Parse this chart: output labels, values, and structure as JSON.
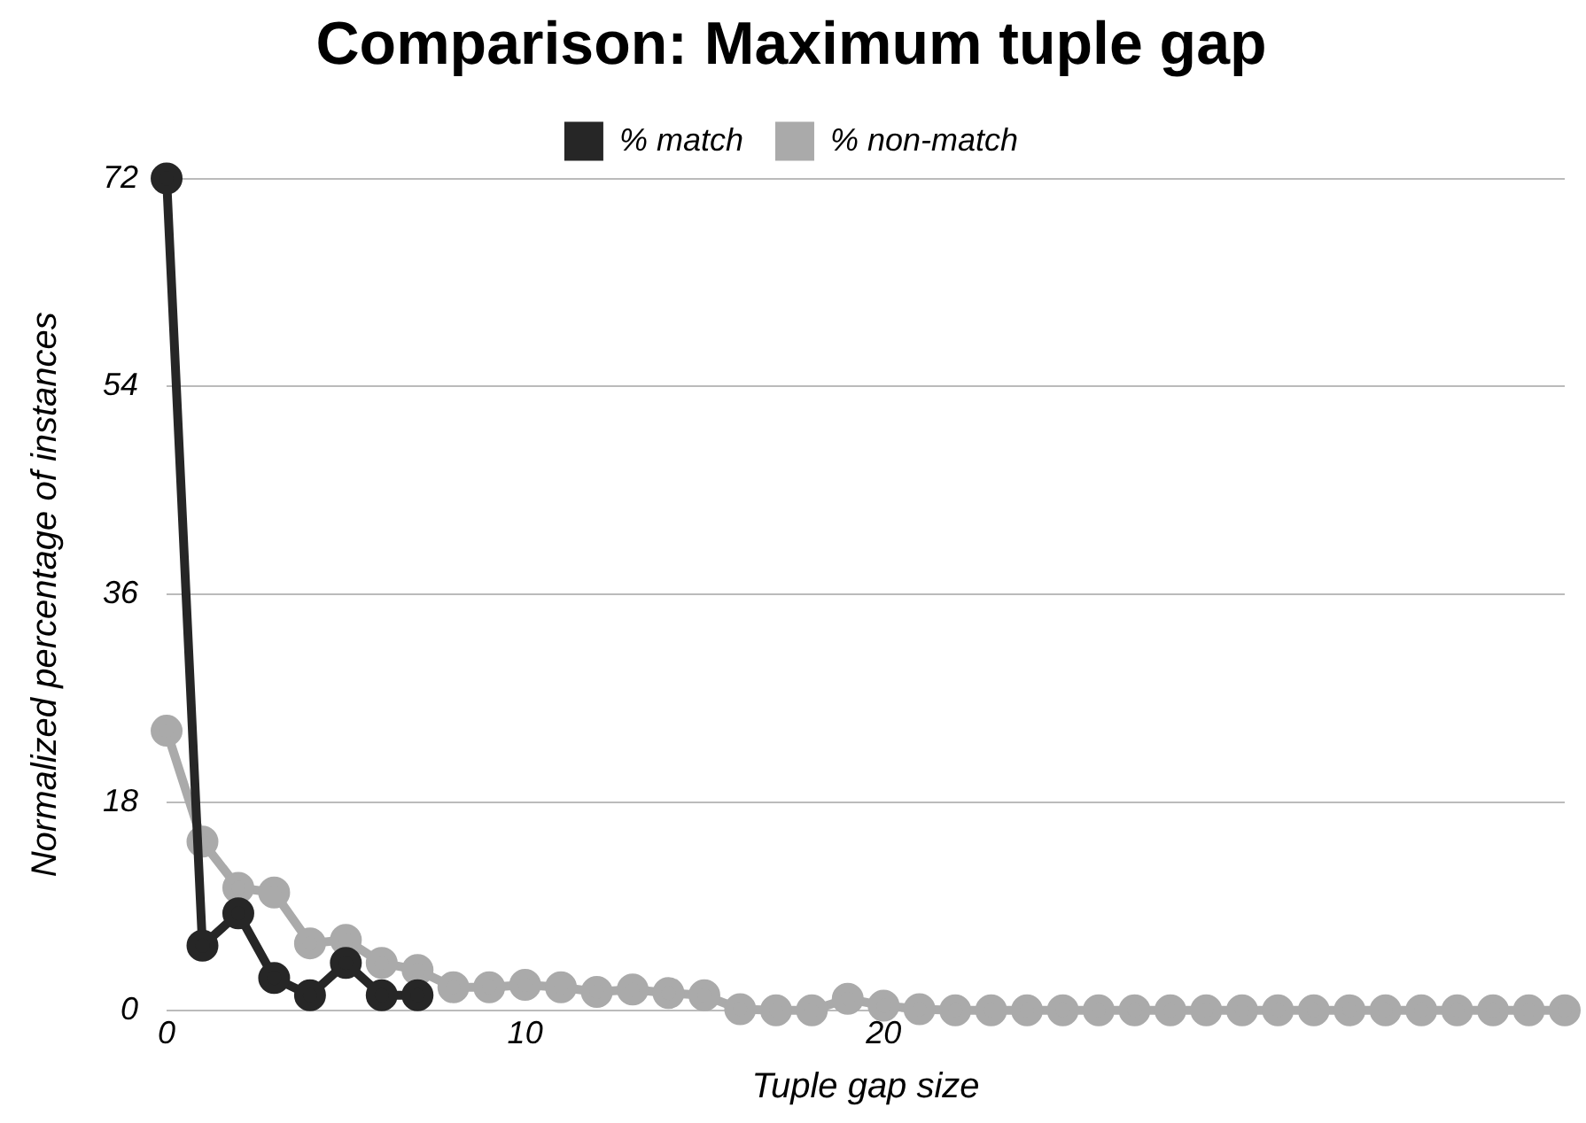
{
  "chart_data": {
    "type": "line",
    "title": "Comparison: Maximum tuple gap",
    "xlabel": "Tuple gap size",
    "ylabel": "Normalized percentage of instances",
    "series": [
      {
        "name": "% match",
        "color": "#262626",
        "x": [
          0,
          1,
          2,
          3,
          4,
          5,
          6,
          7
        ],
        "values": [
          72,
          5.6,
          8.4,
          2.8,
          1.3,
          4.1,
          1.3,
          1.3
        ]
      },
      {
        "name": "% non-match",
        "color": "#aaaaaa",
        "x": [
          0,
          1,
          2,
          3,
          4,
          5,
          6,
          7,
          8,
          9,
          10,
          11,
          12,
          13,
          14,
          15,
          16,
          17,
          18,
          19,
          20,
          21,
          22,
          23,
          24,
          25,
          26,
          27,
          28,
          29,
          30,
          31,
          32,
          33,
          34,
          35,
          36,
          37,
          38,
          39
        ],
        "values": [
          24.2,
          14.6,
          10.6,
          10.2,
          5.8,
          6.1,
          4.1,
          3.5,
          2.0,
          2.0,
          2.2,
          2.0,
          1.6,
          1.8,
          1.5,
          1.3,
          0.1,
          0,
          0,
          1.0,
          0.4,
          0.1,
          0,
          0,
          0,
          0,
          0,
          0,
          0,
          0,
          0,
          0,
          0,
          0,
          0,
          0,
          0,
          0,
          0,
          0
        ]
      }
    ],
    "xlim": [
      0,
      39
    ],
    "xticks": [
      0,
      10,
      20
    ],
    "ylim": [
      0,
      72
    ],
    "yticks": [
      0,
      18,
      36,
      54,
      72
    ],
    "grid": "y",
    "legend": "top",
    "marker": "circle",
    "line_style": "solid"
  }
}
